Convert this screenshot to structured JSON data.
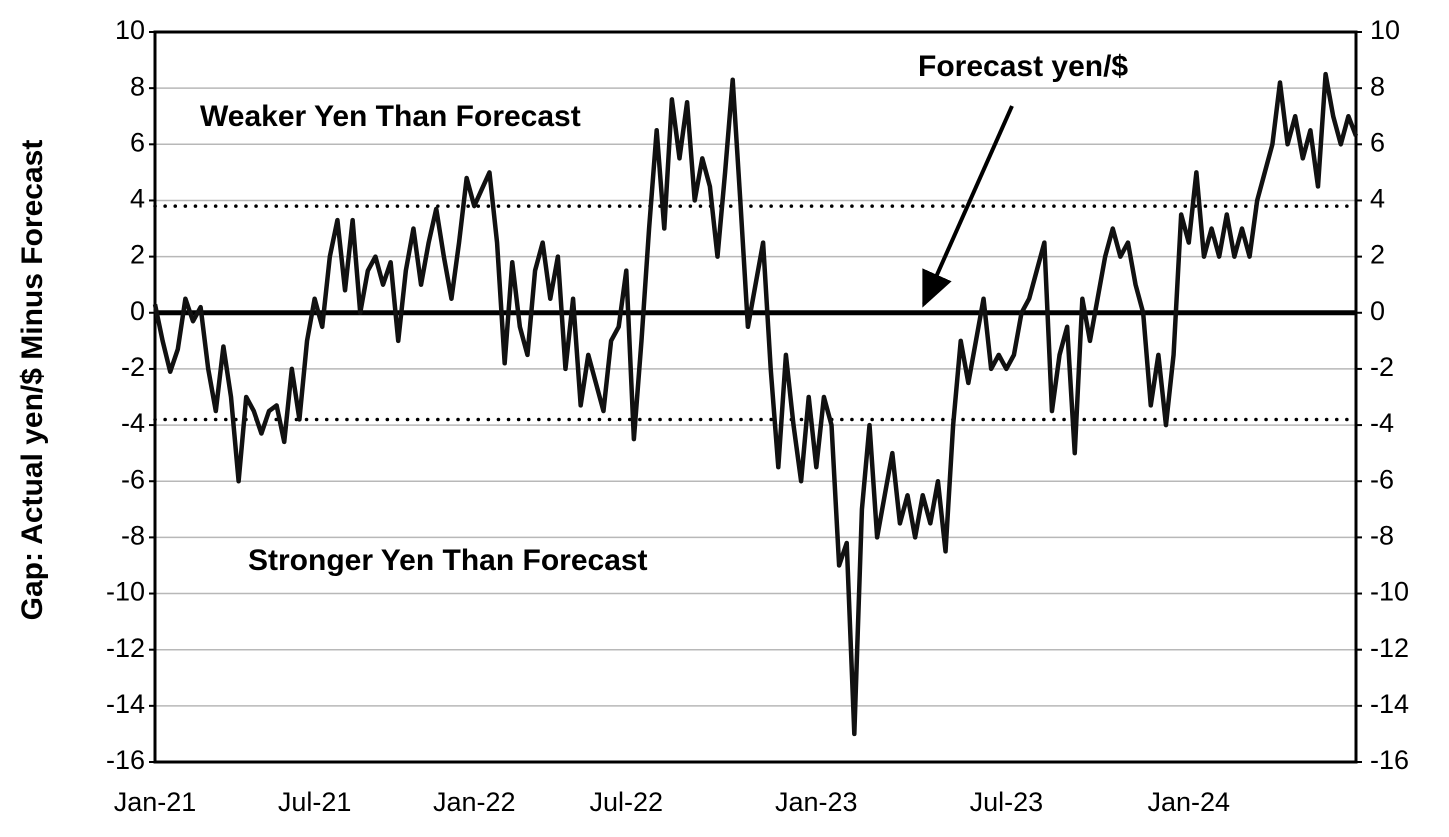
{
  "chart_data": {
    "type": "line",
    "y_label": "Gap: Actual yen/$ Minus Forecast",
    "annotations": [
      "Weaker Yen Than Forecast",
      "Stronger Yen Than Forecast",
      "Forecast yen/$"
    ],
    "categories": [
      "Jan-21",
      null,
      null,
      null,
      null,
      null,
      null,
      null,
      null,
      null,
      null,
      null,
      null,
      null,
      null,
      null,
      null,
      null,
      null,
      null,
      null,
      "Jul-21",
      null,
      null,
      null,
      null,
      null,
      null,
      null,
      null,
      null,
      null,
      null,
      null,
      null,
      null,
      null,
      null,
      null,
      null,
      null,
      null,
      "Jan-22",
      null,
      null,
      null,
      null,
      null,
      null,
      null,
      null,
      null,
      null,
      null,
      null,
      null,
      null,
      null,
      null,
      null,
      null,
      null,
      "Jul-22",
      null,
      null,
      null,
      null,
      null,
      null,
      null,
      null,
      null,
      null,
      null,
      null,
      null,
      null,
      null,
      null,
      null,
      null,
      null,
      null,
      null,
      null,
      null,
      null,
      "Jan-23",
      null,
      null,
      null,
      null,
      null,
      null,
      null,
      null,
      null,
      null,
      null,
      null,
      null,
      null,
      null,
      null,
      null,
      null,
      null,
      null,
      null,
      null,
      null,
      null,
      "Jul-23",
      null,
      null,
      null,
      null,
      null,
      null,
      null,
      null,
      null,
      null,
      null,
      null,
      null,
      null,
      null,
      null,
      null,
      null,
      null,
      null,
      null,
      null,
      null,
      "Jan-24",
      null,
      null,
      null,
      null,
      null,
      null,
      null,
      null,
      null,
      null,
      null,
      null,
      null,
      null,
      null,
      null,
      null,
      null,
      null,
      null,
      null,
      null
    ],
    "values": [
      0.3,
      -1,
      -2.1,
      -1.3,
      0.5,
      -0.3,
      0.2,
      -2,
      -3.5,
      -1.2,
      -3,
      -6,
      -3,
      -3.5,
      -4.3,
      -3.5,
      -3.3,
      -4.6,
      -2,
      -3.8,
      -1,
      0.5,
      -0.5,
      2,
      3.3,
      0.8,
      3.3,
      0,
      1.5,
      2,
      1,
      1.8,
      -1,
      1.5,
      3,
      1,
      2.5,
      3.7,
      2,
      0.5,
      2.5,
      4.8,
      3.8,
      4.4,
      5,
      2.5,
      -1.8,
      1.8,
      -0.5,
      -1.5,
      1.5,
      2.5,
      0.5,
      2,
      -2,
      0.5,
      -3.3,
      -1.5,
      -2.5,
      -3.5,
      -1,
      -0.5,
      1.5,
      -4.5,
      -1,
      3,
      6.5,
      3,
      7.6,
      5.5,
      7.5,
      4,
      5.5,
      4.5,
      2,
      5,
      8.3,
      4,
      -0.5,
      1,
      2.5,
      -2,
      -5.5,
      -1.5,
      -4,
      -6,
      -3,
      -5.5,
      -3,
      -4,
      -9,
      -8.2,
      -15,
      -7,
      -4,
      -8,
      -6.5,
      -5,
      -7.5,
      -6.5,
      -8,
      -6.5,
      -7.5,
      -6,
      -8.5,
      -4,
      -1,
      -2.5,
      -1,
      0.5,
      -2,
      -1.5,
      -2,
      -1.5,
      0,
      0.5,
      1.5,
      2.5,
      -3.5,
      -1.5,
      -0.5,
      -5,
      0.5,
      -1,
      0.5,
      2,
      3,
      2,
      2.5,
      1,
      0,
      -3.3,
      -1.5,
      -4,
      -1.5,
      3.5,
      2.5,
      5,
      2,
      3,
      2,
      3.5,
      2,
      3,
      2,
      4,
      5,
      6,
      8.2,
      6,
      7,
      5.5,
      6.5,
      4.5,
      8.5,
      7,
      6,
      7,
      6.3
    ],
    "color": "#111111",
    "ylim": [
      -16,
      10
    ],
    "yticks": [
      -16,
      -14,
      -12,
      -10,
      -8,
      -6,
      -4,
      -2,
      0,
      2,
      4,
      6,
      8,
      10
    ],
    "y2lim": [
      -16,
      10
    ],
    "y2ticks": [
      -16,
      -14,
      -12,
      -10,
      -8,
      -6,
      -4,
      -2,
      0,
      2,
      4,
      6,
      8,
      10
    ],
    "reference_lines": [
      3.8,
      -3.8
    ],
    "grid": true
  }
}
